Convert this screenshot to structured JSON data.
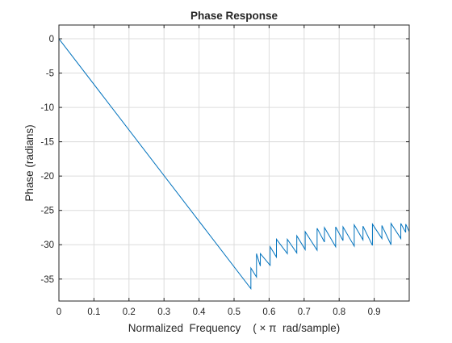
{
  "chart_data": {
    "type": "line",
    "title": "Phase Response",
    "xlabel": "Normalized  Frequency    ( × π  rad/sample)",
    "ylabel": "Phase (radians)",
    "xlim": [
      0,
      1
    ],
    "ylim": [
      -38.2,
      2
    ],
    "x_ticks": [
      0,
      0.1,
      0.2,
      0.3,
      0.4,
      0.5,
      0.6,
      0.7,
      0.8,
      0.9
    ],
    "x_tick_labels": [
      "0",
      "0.1",
      "0.2",
      "0.3",
      "0.4",
      "0.5",
      "0.6",
      "0.7",
      "0.8",
      "0.9"
    ],
    "y_ticks": [
      0,
      -5,
      -10,
      -15,
      -20,
      -25,
      -30,
      -35
    ],
    "y_tick_labels": [
      "0",
      "-5",
      "-10",
      "-15",
      "-20",
      "-25",
      "-30",
      "-35"
    ],
    "grid": true,
    "line_color": "#0072BD",
    "series": [
      {
        "x": [
          0,
          0.548,
          0.548,
          0.564,
          0.564,
          0.575,
          0.575,
          0.603,
          0.603,
          0.621,
          0.621,
          0.652,
          0.652,
          0.679,
          0.679,
          0.703,
          0.703,
          0.737,
          0.737,
          0.758,
          0.758,
          0.79,
          0.79,
          0.811,
          0.811,
          0.843,
          0.843,
          0.868,
          0.868,
          0.895,
          0.895,
          0.922,
          0.922,
          0.948,
          0.948,
          0.976,
          0.976,
          0.99,
          0.99,
          1.0
        ],
        "y": [
          0,
          -36.4,
          -33.4,
          -34.7,
          -31.3,
          -33.1,
          -31.3,
          -33.0,
          -30.3,
          -31.8,
          -29.2,
          -31.3,
          -29.2,
          -31.2,
          -28.7,
          -30.7,
          -28.1,
          -30.8,
          -27.6,
          -29.6,
          -27.5,
          -30.3,
          -27.4,
          -29.4,
          -27.4,
          -30.2,
          -27.1,
          -29.3,
          -27.3,
          -30.1,
          -27.0,
          -29.1,
          -27.2,
          -30.0,
          -26.9,
          -29.1,
          -26.9,
          -28.2,
          -27.0,
          -28.1
        ]
      }
    ]
  }
}
